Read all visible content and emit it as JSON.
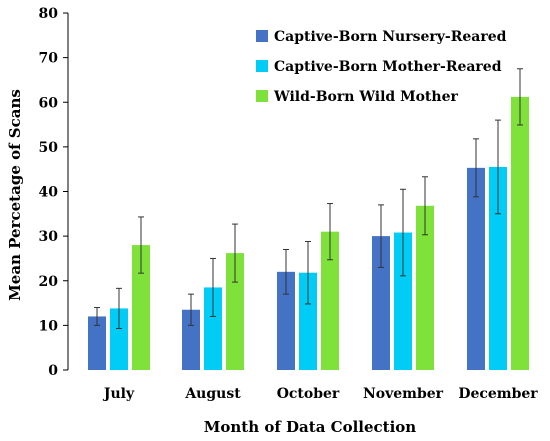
{
  "chart_data": {
    "type": "bar",
    "title": "",
    "xlabel": "Month of Data Collection",
    "ylabel": "Mean Percetage of Scans",
    "ylim": [
      0,
      80
    ],
    "yticks": [
      0,
      10,
      20,
      30,
      40,
      50,
      60,
      70,
      80
    ],
    "grid": false,
    "legend_position": "top-right",
    "categories": [
      "July",
      "August",
      "October",
      "November",
      "December"
    ],
    "series": [
      {
        "name": "Captive-Born Nursery-Reared",
        "color": "#4472C4",
        "values": [
          12,
          13.5,
          22,
          30,
          45.3
        ],
        "error": [
          2,
          3.5,
          5,
          7,
          6.5
        ]
      },
      {
        "name": "Captive-Born Mother-Reared",
        "color": "#00CCF5",
        "values": [
          13.8,
          18.5,
          21.8,
          30.8,
          45.5
        ],
        "error": [
          4.5,
          6.5,
          7,
          9.7,
          10.5
        ]
      },
      {
        "name": "Wild-Born Wild Mother",
        "color": "#7FE23A",
        "values": [
          28,
          26.2,
          31,
          36.8,
          61.2
        ],
        "error": [
          6.3,
          6.5,
          6.3,
          6.5,
          6.3
        ]
      }
    ]
  }
}
